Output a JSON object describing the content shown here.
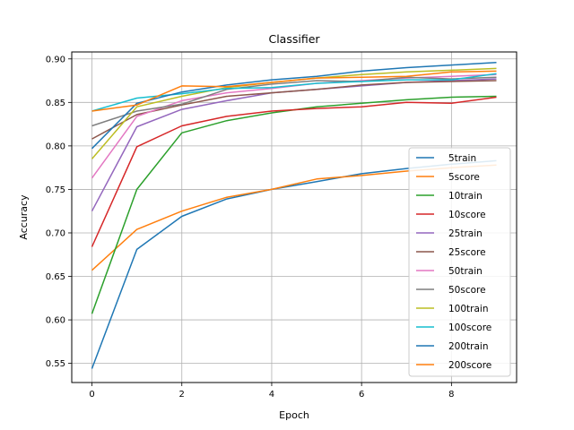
{
  "chart_data": {
    "type": "line",
    "title": "Classifier",
    "xlabel": "Epoch",
    "ylabel": "Accuracy",
    "xlim": [
      -0.45,
      9.45
    ],
    "ylim": [
      0.528,
      0.908
    ],
    "xticks": [
      0,
      2,
      4,
      6,
      8
    ],
    "yticks": [
      0.55,
      0.6,
      0.65,
      0.7,
      0.75,
      0.8,
      0.85,
      0.9
    ],
    "grid": true,
    "legend_position": "lower-right",
    "x": [
      0,
      1,
      2,
      3,
      4,
      5,
      6,
      7,
      8,
      9
    ],
    "series": [
      {
        "name": "5train",
        "color": "#1f77b4",
        "values": [
          0.544,
          0.681,
          0.719,
          0.739,
          0.75,
          0.759,
          0.768,
          0.774,
          0.779,
          0.783
        ]
      },
      {
        "name": "5score",
        "color": "#ff7f0e",
        "values": [
          0.657,
          0.704,
          0.725,
          0.741,
          0.75,
          0.762,
          0.766,
          0.771,
          0.775,
          0.778
        ]
      },
      {
        "name": "10train",
        "color": "#2ca02c",
        "values": [
          0.607,
          0.75,
          0.815,
          0.829,
          0.838,
          0.845,
          0.849,
          0.853,
          0.856,
          0.857
        ]
      },
      {
        "name": "10score",
        "color": "#d62728",
        "values": [
          0.684,
          0.799,
          0.823,
          0.834,
          0.84,
          0.843,
          0.845,
          0.85,
          0.849,
          0.856
        ]
      },
      {
        "name": "25train",
        "color": "#9467bd",
        "values": [
          0.725,
          0.822,
          0.842,
          0.852,
          0.861,
          0.865,
          0.869,
          0.873,
          0.875,
          0.877
        ]
      },
      {
        "name": "25score",
        "color": "#8c564b",
        "values": [
          0.808,
          0.836,
          0.847,
          0.857,
          0.861,
          0.865,
          0.87,
          0.873,
          0.874,
          0.875
        ]
      },
      {
        "name": "50train",
        "color": "#e377c2",
        "values": [
          0.763,
          0.834,
          0.852,
          0.861,
          0.866,
          0.872,
          0.875,
          0.878,
          0.88,
          0.882
        ]
      },
      {
        "name": "50score",
        "color": "#7f7f7f",
        "values": [
          0.823,
          0.84,
          0.848,
          0.865,
          0.871,
          0.875,
          0.874,
          0.879,
          0.877,
          0.879
        ]
      },
      {
        "name": "100train",
        "color": "#bcbd22",
        "values": [
          0.785,
          0.845,
          0.857,
          0.867,
          0.873,
          0.878,
          0.882,
          0.885,
          0.887,
          0.889
        ]
      },
      {
        "name": "100score",
        "color": "#17becf",
        "values": [
          0.84,
          0.855,
          0.86,
          0.866,
          0.867,
          0.872,
          0.874,
          0.876,
          0.876,
          0.883
        ]
      },
      {
        "name": "200train",
        "color": "#1f77b4",
        "values": [
          0.797,
          0.849,
          0.862,
          0.87,
          0.876,
          0.88,
          0.886,
          0.89,
          0.893,
          0.896
        ]
      },
      {
        "name": "200score",
        "color": "#ff7f0e",
        "values": [
          0.84,
          0.847,
          0.869,
          0.868,
          0.873,
          0.878,
          0.879,
          0.88,
          0.885,
          0.886
        ]
      }
    ]
  }
}
